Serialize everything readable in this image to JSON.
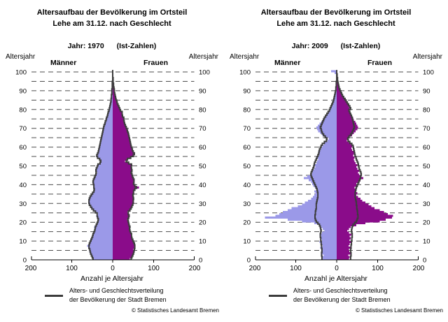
{
  "page": {
    "background": "#ffffff"
  },
  "chart_data": [
    {
      "type": "bar",
      "subtype": "population-pyramid",
      "title_line1": "Altersaufbau der Bevölkerung im Ortsteil",
      "title_line2": "Lehe am 31.12. nach Geschlecht",
      "year_label": "Jahr: 1970",
      "ist_label": "(Ist-Zahlen)",
      "age_axis_label_left": "Altersjahr",
      "age_axis_label_right": "Altersjahr",
      "men_header": "Männer",
      "women_header": "Frauen",
      "xlabel": "Anzahl je Altersjahr",
      "x_tick_labels": [
        "200",
        "100",
        "0",
        "100",
        "200"
      ],
      "x_tick_values": [
        -200,
        -100,
        0,
        100,
        200
      ],
      "xlim": [
        -200,
        200
      ],
      "y_ticks": [
        0,
        10,
        20,
        30,
        40,
        50,
        60,
        70,
        80,
        90,
        100
      ],
      "grid_step": 5,
      "age_range": [
        0,
        100
      ],
      "legend_line1": "Alters- und Geschlechtsverteilung",
      "legend_line2": "der Bevölkerung der Stadt Bremen",
      "copyright": "© Statistisches Landesamt Bremen",
      "colors": {
        "men": "#9B99E8",
        "women": "#8A0C8A",
        "bremen_line": "#3C3C3C",
        "grid": "#4D4D4D",
        "axis": "#000000"
      },
      "series": [
        {
          "name": "Lehe Männer",
          "values": [
            46,
            50,
            52,
            55,
            57,
            55,
            60,
            62,
            58,
            55,
            52,
            50,
            48,
            50,
            46,
            44,
            42,
            45,
            40,
            38,
            36,
            33,
            38,
            40,
            36,
            42,
            48,
            52,
            55,
            58,
            60,
            57,
            58,
            55,
            52,
            50,
            46,
            44,
            48,
            45,
            47,
            50,
            48,
            45,
            42,
            40,
            38,
            42,
            40,
            36,
            38,
            30,
            28,
            32,
            38,
            40,
            36,
            34,
            35,
            33,
            32,
            31,
            30,
            29,
            28,
            27,
            26,
            25,
            24,
            23,
            22,
            21,
            20,
            18,
            17,
            15,
            14,
            12,
            11,
            10,
            8,
            7,
            6,
            5,
            4,
            4,
            3,
            3,
            2,
            2,
            2,
            1,
            1,
            1,
            1,
            1,
            0,
            0,
            0,
            0,
            0
          ]
        },
        {
          "name": "Lehe Frauen",
          "values": [
            42,
            46,
            48,
            50,
            52,
            50,
            54,
            55,
            52,
            50,
            48,
            46,
            45,
            47,
            44,
            42,
            40,
            43,
            40,
            38,
            37,
            35,
            40,
            42,
            38,
            36,
            42,
            46,
            48,
            50,
            52,
            50,
            52,
            50,
            48,
            52,
            50,
            55,
            64,
            55,
            50,
            52,
            54,
            50,
            48,
            46,
            44,
            48,
            46,
            44,
            48,
            38,
            30,
            34,
            44,
            52,
            55,
            50,
            48,
            46,
            45,
            44,
            43,
            42,
            41,
            40,
            39,
            38,
            37,
            35,
            34,
            32,
            30,
            28,
            27,
            28,
            24,
            22,
            25,
            18,
            16,
            14,
            12,
            10,
            9,
            8,
            7,
            6,
            5,
            4,
            4,
            3,
            2,
            2,
            1,
            1,
            1,
            0,
            0,
            0,
            0
          ]
        },
        {
          "name": "Stadt Bremen Männer (Linie)",
          "values": [
            48,
            50,
            52,
            54,
            55,
            56,
            58,
            58,
            57,
            55,
            53,
            51,
            49,
            48,
            46,
            44,
            43,
            42,
            40,
            38,
            36,
            35,
            37,
            38,
            38,
            42,
            47,
            51,
            54,
            57,
            58,
            58,
            57,
            55,
            52,
            49,
            46,
            45,
            46,
            46,
            47,
            48,
            47,
            45,
            43,
            41,
            40,
            41,
            40,
            38,
            36,
            31,
            29,
            32,
            37,
            39,
            37,
            35,
            34,
            33,
            32,
            31,
            30,
            29,
            28,
            27,
            26,
            25,
            24,
            23,
            22,
            21,
            19,
            18,
            16,
            15,
            13,
            12,
            11,
            9,
            8,
            7,
            6,
            5,
            4,
            4,
            3,
            3,
            2,
            2,
            2,
            1,
            1,
            1,
            1,
            0,
            0,
            0,
            0,
            0,
            0
          ]
        },
        {
          "name": "Stadt Bremen Frauen (Linie)",
          "values": [
            45,
            47,
            49,
            51,
            52,
            53,
            54,
            54,
            53,
            51,
            49,
            47,
            46,
            46,
            44,
            42,
            41,
            42,
            40,
            39,
            38,
            37,
            39,
            40,
            38,
            38,
            42,
            45,
            47,
            49,
            50,
            50,
            51,
            50,
            49,
            51,
            51,
            54,
            58,
            54,
            51,
            52,
            52,
            50,
            48,
            47,
            45,
            47,
            46,
            45,
            46,
            39,
            33,
            36,
            44,
            50,
            53,
            50,
            48,
            47,
            45,
            44,
            43,
            42,
            41,
            40,
            39,
            38,
            36,
            35,
            33,
            31,
            29,
            28,
            27,
            27,
            24,
            23,
            23,
            19,
            17,
            15,
            13,
            11,
            10,
            8,
            7,
            6,
            5,
            4,
            4,
            3,
            2,
            2,
            1,
            1,
            1,
            0,
            0,
            0,
            0
          ]
        }
      ]
    },
    {
      "type": "bar",
      "subtype": "population-pyramid",
      "title_line1": "Altersaufbau der Bevölkerung im Ortsteil",
      "title_line2": "Lehe am 31.12. nach Geschlecht",
      "year_label": "Jahr: 2009",
      "ist_label": "(Ist-Zahlen)",
      "age_axis_label_left": "Altersjahr",
      "age_axis_label_right": "Altersjahr",
      "men_header": "Männer",
      "women_header": "Frauen",
      "xlabel": "Anzahl je Altersjahr",
      "x_tick_labels": [
        "200",
        "100",
        "0",
        "100",
        "200"
      ],
      "x_tick_values": [
        -200,
        -100,
        0,
        100,
        200
      ],
      "xlim": [
        -200,
        200
      ],
      "y_ticks": [
        0,
        10,
        20,
        30,
        40,
        50,
        60,
        70,
        80,
        90,
        100
      ],
      "grid_step": 5,
      "age_range": [
        0,
        100
      ],
      "legend_line1": "Alters- und Geschlechtsverteilung",
      "legend_line2": "der Bevölkerung der Stadt Bremen",
      "copyright": "© Statistisches Landesamt Bremen",
      "colors": {
        "men": "#9B99E8",
        "women": "#8A0C8A",
        "bremen_line": "#3C3C3C",
        "grid": "#4D4D4D",
        "axis": "#000000"
      },
      "series": [
        {
          "name": "Lehe Männer",
          "values": [
            34,
            36,
            32,
            38,
            35,
            36,
            40,
            34,
            38,
            42,
            36,
            40,
            38,
            42,
            36,
            30,
            34,
            38,
            44,
            55,
            85,
            120,
            175,
            150,
            140,
            132,
            120,
            110,
            95,
            85,
            78,
            70,
            62,
            58,
            55,
            52,
            55,
            50,
            53,
            57,
            60,
            62,
            68,
            80,
            72,
            65,
            60,
            58,
            55,
            52,
            55,
            50,
            48,
            45,
            46,
            44,
            42,
            45,
            40,
            38,
            35,
            32,
            28,
            22,
            20,
            28,
            35,
            40,
            45,
            48,
            50,
            46,
            42,
            38,
            34,
            30,
            26,
            22,
            20,
            18,
            16,
            13,
            11,
            10,
            9,
            8,
            6,
            5,
            4,
            3,
            3,
            2,
            2,
            1,
            1,
            1,
            0,
            0,
            0,
            5,
            14
          ]
        },
        {
          "name": "Lehe Frauen",
          "values": [
            30,
            32,
            28,
            34,
            31,
            30,
            34,
            29,
            32,
            35,
            31,
            34,
            32,
            36,
            30,
            26,
            30,
            34,
            48,
            70,
            105,
            120,
            135,
            138,
            125,
            115,
            105,
            92,
            85,
            78,
            70,
            62,
            58,
            52,
            48,
            50,
            46,
            48,
            44,
            50,
            48,
            52,
            58,
            65,
            60,
            55,
            52,
            55,
            50,
            48,
            50,
            46,
            44,
            42,
            44,
            40,
            42,
            44,
            38,
            36,
            38,
            35,
            30,
            25,
            28,
            32,
            38,
            42,
            46,
            50,
            52,
            50,
            48,
            45,
            42,
            40,
            38,
            35,
            32,
            30,
            32,
            30,
            28,
            26,
            24,
            22,
            18,
            15,
            12,
            10,
            8,
            6,
            5,
            4,
            3,
            3,
            2,
            2,
            1,
            1,
            1
          ]
        },
        {
          "name": "Stadt Bremen Männer (Linie)",
          "values": [
            36,
            36,
            37,
            37,
            36,
            36,
            37,
            37,
            38,
            38,
            39,
            39,
            40,
            40,
            39,
            38,
            39,
            40,
            42,
            46,
            50,
            52,
            53,
            53,
            52,
            52,
            51,
            50,
            50,
            50,
            49,
            48,
            47,
            46,
            46,
            46,
            47,
            48,
            50,
            52,
            54,
            56,
            58,
            60,
            62,
            63,
            62,
            60,
            58,
            56,
            55,
            54,
            52,
            50,
            48,
            46,
            44,
            43,
            42,
            40,
            38,
            35,
            30,
            25,
            24,
            28,
            32,
            35,
            37,
            38,
            40,
            38,
            36,
            34,
            32,
            30,
            27,
            24,
            21,
            18,
            16,
            14,
            12,
            10,
            8,
            7,
            6,
            5,
            4,
            3,
            2,
            2,
            1,
            1,
            1,
            0,
            0,
            0,
            0,
            0,
            0
          ]
        },
        {
          "name": "Stadt Bremen Frauen (Linie)",
          "values": [
            34,
            34,
            35,
            35,
            34,
            34,
            35,
            35,
            36,
            36,
            37,
            37,
            38,
            38,
            37,
            36,
            37,
            38,
            40,
            44,
            48,
            50,
            52,
            52,
            51,
            51,
            50,
            49,
            49,
            48,
            48,
            47,
            46,
            45,
            45,
            45,
            46,
            47,
            48,
            50,
            52,
            54,
            56,
            58,
            59,
            60,
            59,
            57,
            55,
            54,
            53,
            52,
            50,
            48,
            47,
            45,
            44,
            43,
            42,
            41,
            40,
            37,
            32,
            28,
            27,
            30,
            34,
            37,
            39,
            41,
            43,
            42,
            41,
            40,
            39,
            38,
            36,
            34,
            32,
            30,
            34,
            32,
            29,
            26,
            23,
            20,
            17,
            14,
            12,
            10,
            8,
            6,
            5,
            4,
            3,
            2,
            2,
            1,
            1,
            0,
            0
          ]
        }
      ]
    }
  ]
}
